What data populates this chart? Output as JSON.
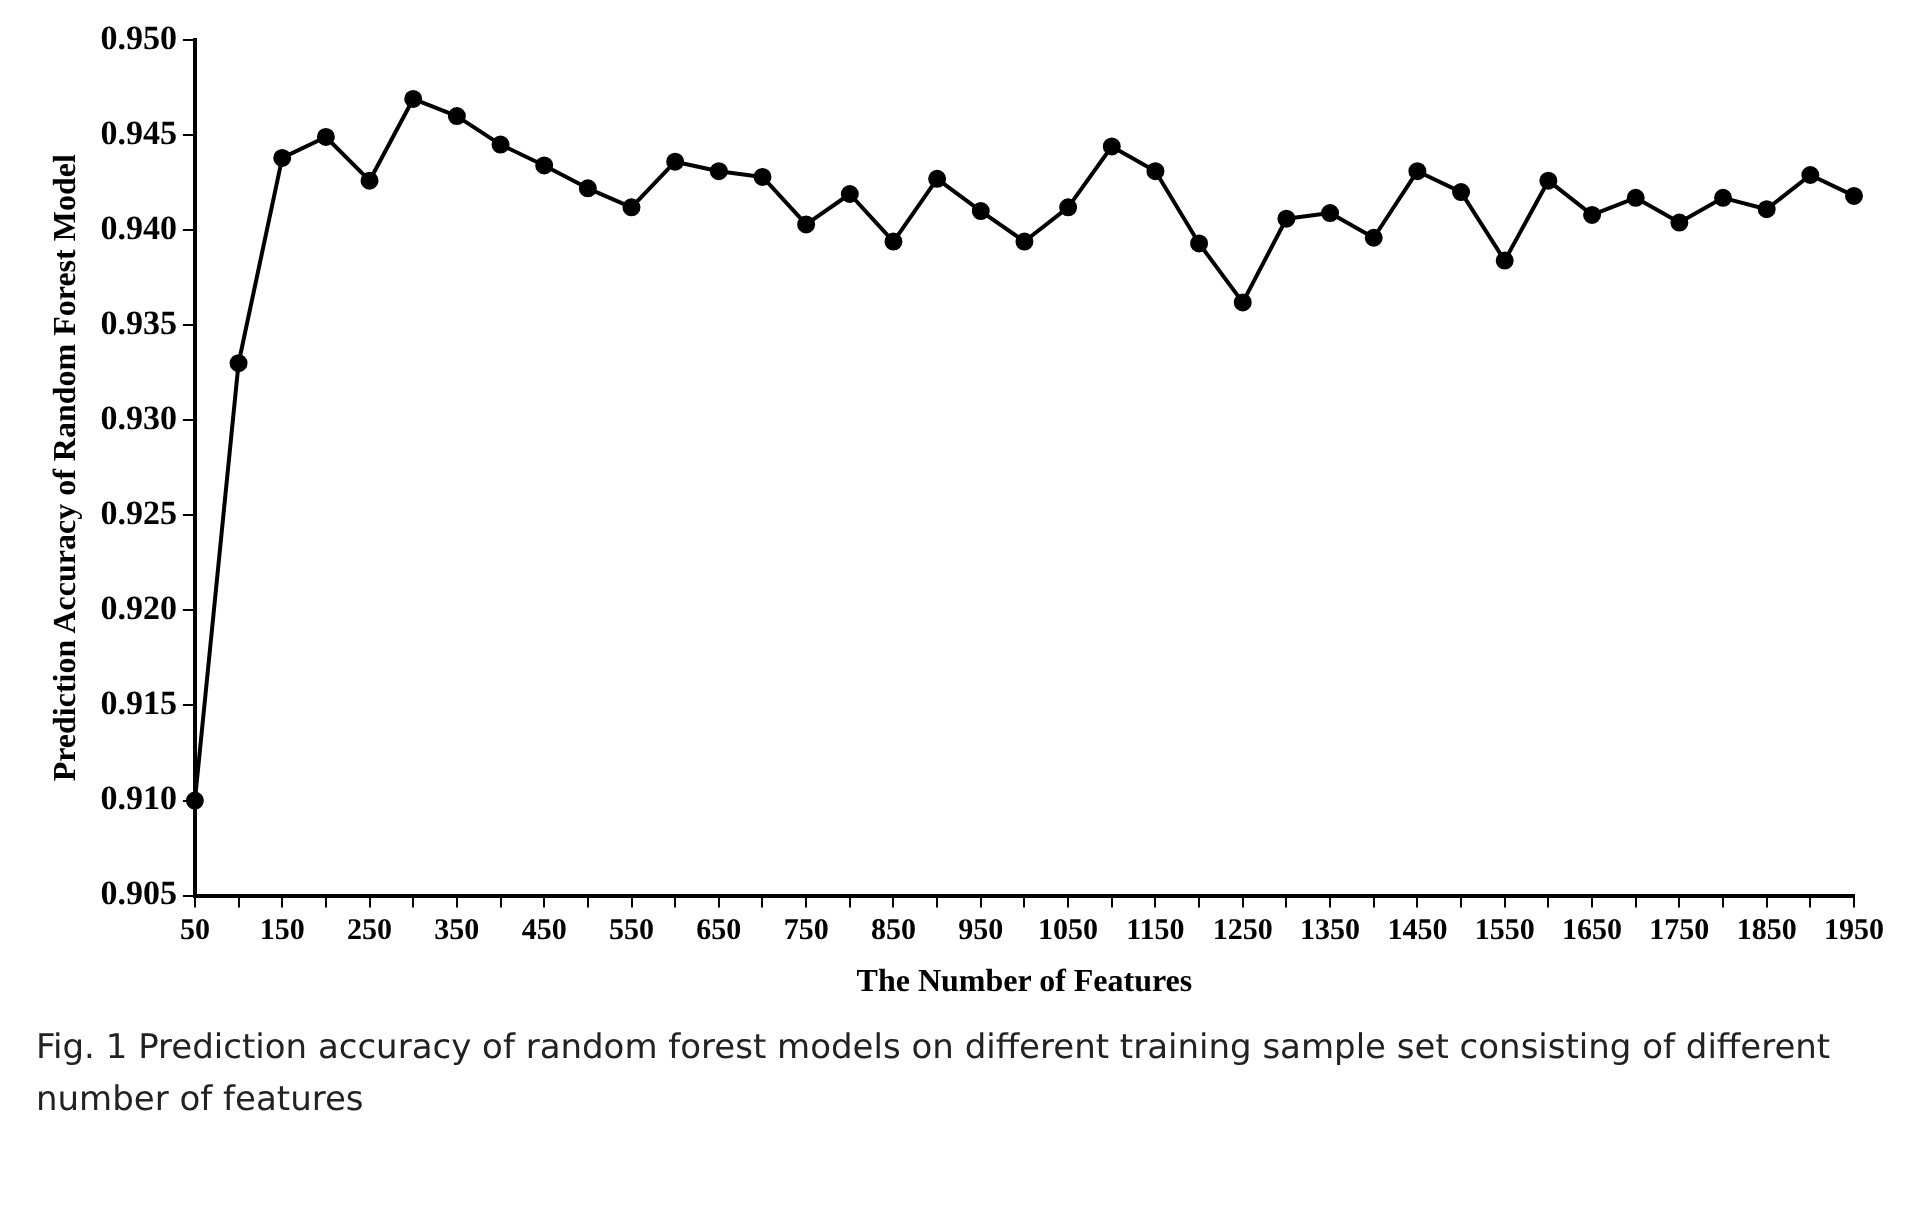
{
  "chart_data": {
    "type": "line",
    "xlabel": "The Number of Features",
    "ylabel": "Prediction Accuracy of Random Forest Model",
    "categories": [
      "50",
      null,
      "150",
      null,
      "250",
      null,
      "350",
      null,
      "450",
      null,
      "550",
      null,
      "650",
      null,
      "750",
      null,
      "850",
      null,
      "950",
      null,
      "1050",
      null,
      "1150",
      null,
      "1250",
      null,
      "1350",
      null,
      "1450",
      null,
      "1550",
      null,
      "1650",
      null,
      "1750",
      null,
      "1850",
      null,
      "1950"
    ],
    "series": [
      {
        "color": "#000000",
        "values": [
          0.91,
          0.933,
          0.9438,
          0.9449,
          0.9426,
          0.9469,
          0.946,
          0.9445,
          0.9434,
          0.9422,
          0.9412,
          0.9436,
          0.9431,
          0.9428,
          0.9403,
          0.9419,
          0.9394,
          0.9427,
          0.941,
          0.9394,
          0.9412,
          0.9444,
          0.9431,
          0.9393,
          0.9362,
          0.9406,
          0.9409,
          0.9396,
          0.9431,
          0.942,
          0.9384,
          0.9426,
          0.9408,
          0.9417,
          0.9404,
          0.9417,
          0.9411,
          0.9429,
          0.9418
        ]
      }
    ],
    "ylim": [
      0.905,
      0.95
    ],
    "yticks": [
      {
        "value": 0.905,
        "label": "0.905"
      },
      {
        "value": 0.91,
        "label": "0.910"
      },
      {
        "value": 0.915,
        "label": "0.915"
      },
      {
        "value": 0.92,
        "label": "0.920"
      },
      {
        "value": 0.925,
        "label": "0.925"
      },
      {
        "value": 0.93,
        "label": "0.930"
      },
      {
        "value": 0.935,
        "label": "0.935"
      },
      {
        "value": 0.94,
        "label": "0.940"
      },
      {
        "value": 0.945,
        "label": "0.945"
      },
      {
        "value": 0.95,
        "label": "0.950"
      }
    ],
    "grid": false,
    "legend": false,
    "marker": "circle",
    "line_style": "solid",
    "annotations": [
      "Fig. 1 Prediction accuracy of random forest models on different training sample set consisting of different number of features"
    ]
  }
}
